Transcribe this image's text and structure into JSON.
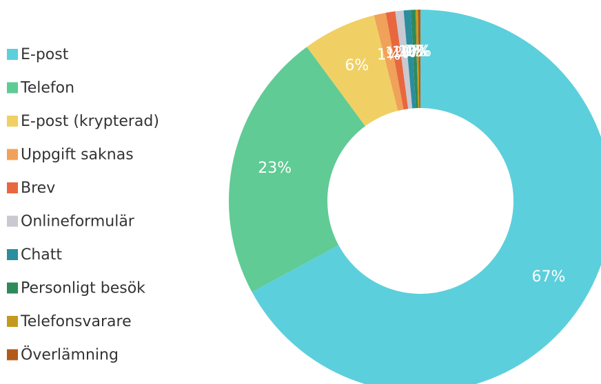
{
  "chart_data": {
    "type": "donut",
    "categories": [
      "E-post",
      "Telefon",
      "E-post (krypterad)",
      "Uppgift saknas",
      "Brev",
      "Onlineformulär",
      "Chatt",
      "Personligt besök",
      "Telefonsvarare",
      "Överlämning"
    ],
    "values": [
      67.1,
      22.8,
      6.2,
      1.0,
      0.8,
      0.7,
      0.6,
      0.4,
      0.2,
      0.2
    ],
    "value_labels": [
      "67%",
      "23%",
      "6%",
      "1%",
      "1%",
      "1%",
      "1%",
      "0%",
      "0%",
      "0%"
    ],
    "colors": [
      "#5ccfdc",
      "#60cb94",
      "#f0d064",
      "#f0a25a",
      "#e8673f",
      "#c9c9d1",
      "#2a8e9e",
      "#2e8a5a",
      "#c49a1e",
      "#b35a1a"
    ],
    "legend": "left"
  }
}
